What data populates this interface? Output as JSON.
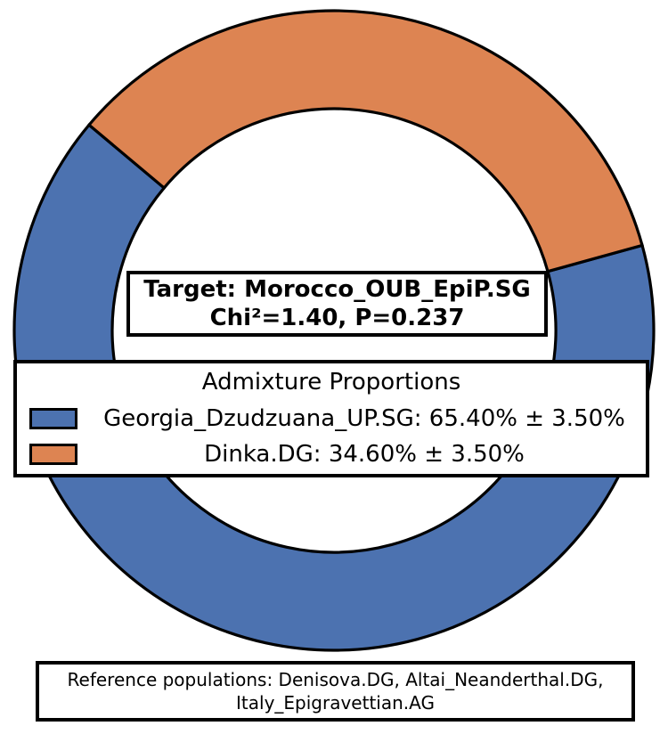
{
  "chart_data": {
    "type": "pie",
    "variant": "donut",
    "title": "Admixture Proportions",
    "series": [
      {
        "name": "Georgia_Dzudzuana_UP.SG",
        "value": 65.4,
        "error_pct": 3.5,
        "color": "#4C72B0"
      },
      {
        "name": "Dinka.DG",
        "value": 34.6,
        "error_pct": 3.5,
        "color": "#DD8452"
      }
    ],
    "units": "percent",
    "start_angle_deg": 140,
    "direction": "counterclockwise",
    "edge_color": "#000000",
    "legend_position": "center-overlay",
    "annotations": [
      "Target: Morocco_OUB_EpiP.SG",
      "Chi²=1.40, P=0.237",
      "Reference populations: Denisova.DG, Altai_Neanderthal.DG, Italy_Epigravettian.AG"
    ]
  },
  "target_box": {
    "line1": "Target: Morocco_OUB_EpiP.SG",
    "line2": "Chi²=1.40, P=0.237"
  },
  "legend": {
    "title": "Admixture Proportions",
    "entries": [
      {
        "swatch_color": "#4C72B0",
        "label": "Georgia_Dzudzuana_UP.SG: 65.40% ± 3.50%"
      },
      {
        "swatch_color": "#DD8452",
        "label": "Dinka.DG: 34.60% ± 3.50%"
      }
    ]
  },
  "reference_box": {
    "line1": "Reference populations: Denisova.DG, Altai_Neanderthal.DG,",
    "line2": "Italy_Epigravettian.AG"
  }
}
